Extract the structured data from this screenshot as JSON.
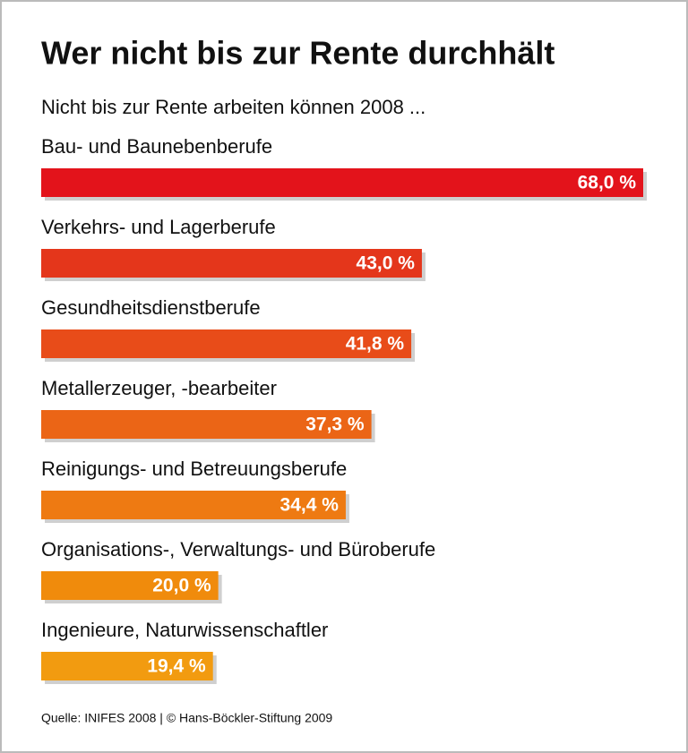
{
  "chart_data": {
    "type": "bar",
    "title": "Wer nicht bis zur Rente durchhält",
    "subtitle": "Nicht bis zur Rente arbeiten können 2008 ...",
    "source": "Quelle: INIFES 2008 | © Hans-Böckler-Stiftung 2009",
    "categories": [
      "Bau- und Baunebenberufe",
      "Verkehrs- und Lagerberufe",
      "Gesundheitsdienstberufe",
      "Metallerzeuger, -bearbeiter",
      "Reinigungs- und Betreuungsberufe",
      "Organisations-, Verwaltungs- und Büroberufe",
      "Ingenieure, Naturwissenschaftler"
    ],
    "values": [
      68.0,
      43.0,
      41.8,
      37.3,
      34.4,
      20.0,
      19.4
    ],
    "value_labels": [
      "68,0 %",
      "43,0 %",
      "41,8 %",
      "37,3 %",
      "34,4 %",
      "20,0 %",
      "19,4 %"
    ],
    "colors": [
      "#e3131b",
      "#e4361b",
      "#e84c19",
      "#eb6516",
      "#ee7a12",
      "#f08b0c",
      "#f29b10"
    ]
  }
}
